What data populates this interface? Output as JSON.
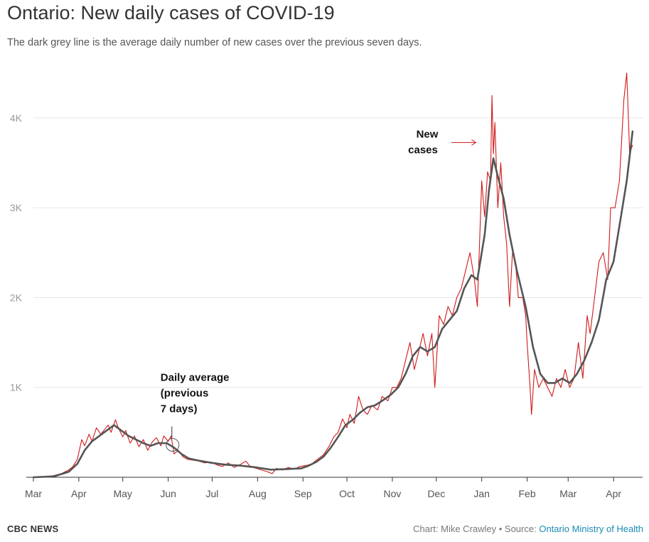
{
  "title": "Ontario: New daily cases of COVID-19",
  "subtitle": "The dark grey line is the average daily number of new cases over the previous seven days.",
  "footer": {
    "brand": "CBC NEWS",
    "credit": "Chart: Mike Crawley • Source: ",
    "source": "Ontario Ministry of Health"
  },
  "colors": {
    "new_cases": "#d11a1a",
    "average": "#555555",
    "grid": "#e6e6e6",
    "axis": "#333333"
  },
  "annotations": {
    "average": [
      "Daily average",
      "(previous",
      "7 days)"
    ],
    "new_cases": [
      "New",
      "cases"
    ]
  },
  "chart_data": {
    "type": "line",
    "title": "Ontario: New daily cases of COVID-19",
    "x_range": [
      "2020-03-01",
      "2021-04-15"
    ],
    "y_range": [
      0,
      4600
    ],
    "y_ticks": [
      1000,
      2000,
      3000,
      4000
    ],
    "y_tick_labels": [
      "1K",
      "2K",
      "3K",
      "4K"
    ],
    "x_ticks": [
      "2020-03-01",
      "2020-04-01",
      "2020-05-01",
      "2020-06-01",
      "2020-07-01",
      "2020-08-01",
      "2020-09-01",
      "2020-10-01",
      "2020-11-01",
      "2020-12-01",
      "2021-01-01",
      "2021-02-01",
      "2021-03-01",
      "2021-04-01"
    ],
    "x_tick_labels": [
      "Mar",
      "Apr",
      "May",
      "Jun",
      "Jul",
      "Aug",
      "Sep",
      "Oct",
      "Nov",
      "Dec",
      "Jan",
      "Feb",
      "Mar",
      "Apr"
    ],
    "grid": true,
    "series": [
      {
        "name": "New cases",
        "color": "#d11a1a",
        "points": [
          [
            "2020-03-01",
            0
          ],
          [
            "2020-03-10",
            5
          ],
          [
            "2020-03-15",
            20
          ],
          [
            "2020-03-20",
            40
          ],
          [
            "2020-03-25",
            80
          ],
          [
            "2020-03-28",
            120
          ],
          [
            "2020-03-31",
            200
          ],
          [
            "2020-04-03",
            420
          ],
          [
            "2020-04-05",
            350
          ],
          [
            "2020-04-08",
            480
          ],
          [
            "2020-04-10",
            400
          ],
          [
            "2020-04-13",
            550
          ],
          [
            "2020-04-16",
            480
          ],
          [
            "2020-04-18",
            520
          ],
          [
            "2020-04-21",
            580
          ],
          [
            "2020-04-23",
            500
          ],
          [
            "2020-04-26",
            640
          ],
          [
            "2020-04-28",
            550
          ],
          [
            "2020-05-01",
            450
          ],
          [
            "2020-05-03",
            520
          ],
          [
            "2020-05-06",
            380
          ],
          [
            "2020-05-09",
            460
          ],
          [
            "2020-05-12",
            340
          ],
          [
            "2020-05-15",
            420
          ],
          [
            "2020-05-18",
            300
          ],
          [
            "2020-05-21",
            390
          ],
          [
            "2020-05-24",
            440
          ],
          [
            "2020-05-27",
            350
          ],
          [
            "2020-05-29",
            460
          ],
          [
            "2020-06-01",
            400
          ],
          [
            "2020-06-03",
            460
          ],
          [
            "2020-06-05",
            260
          ],
          [
            "2020-06-08",
            300
          ],
          [
            "2020-06-11",
            230
          ],
          [
            "2020-06-14",
            200
          ],
          [
            "2020-06-18",
            190
          ],
          [
            "2020-06-22",
            180
          ],
          [
            "2020-06-26",
            160
          ],
          [
            "2020-06-30",
            170
          ],
          [
            "2020-07-04",
            140
          ],
          [
            "2020-07-08",
            120
          ],
          [
            "2020-07-12",
            160
          ],
          [
            "2020-07-16",
            110
          ],
          [
            "2020-07-20",
            140
          ],
          [
            "2020-07-24",
            180
          ],
          [
            "2020-07-27",
            120
          ],
          [
            "2020-07-31",
            100
          ],
          [
            "2020-08-04",
            80
          ],
          [
            "2020-08-08",
            60
          ],
          [
            "2020-08-11",
            40
          ],
          [
            "2020-08-14",
            100
          ],
          [
            "2020-08-18",
            80
          ],
          [
            "2020-08-22",
            110
          ],
          [
            "2020-08-26",
            90
          ],
          [
            "2020-08-30",
            120
          ],
          [
            "2020-09-03",
            130
          ],
          [
            "2020-09-07",
            150
          ],
          [
            "2020-09-11",
            200
          ],
          [
            "2020-09-15",
            250
          ],
          [
            "2020-09-19",
            350
          ],
          [
            "2020-09-22",
            450
          ],
          [
            "2020-09-25",
            500
          ],
          [
            "2020-09-28",
            650
          ],
          [
            "2020-10-01",
            550
          ],
          [
            "2020-10-03",
            700
          ],
          [
            "2020-10-06",
            600
          ],
          [
            "2020-10-09",
            900
          ],
          [
            "2020-10-12",
            750
          ],
          [
            "2020-10-15",
            700
          ],
          [
            "2020-10-18",
            800
          ],
          [
            "2020-10-22",
            750
          ],
          [
            "2020-10-25",
            900
          ],
          [
            "2020-10-29",
            850
          ],
          [
            "2020-11-01",
            1000
          ],
          [
            "2020-11-04",
            1000
          ],
          [
            "2020-11-07",
            1100
          ],
          [
            "2020-11-10",
            1300
          ],
          [
            "2020-11-13",
            1500
          ],
          [
            "2020-11-16",
            1200
          ],
          [
            "2020-11-19",
            1400
          ],
          [
            "2020-11-22",
            1600
          ],
          [
            "2020-11-25",
            1350
          ],
          [
            "2020-11-28",
            1600
          ],
          [
            "2020-11-30",
            1000
          ],
          [
            "2020-12-03",
            1800
          ],
          [
            "2020-12-06",
            1700
          ],
          [
            "2020-12-09",
            1900
          ],
          [
            "2020-12-12",
            1800
          ],
          [
            "2020-12-15",
            2000
          ],
          [
            "2020-12-18",
            2100
          ],
          [
            "2020-12-21",
            2300
          ],
          [
            "2020-12-24",
            2500
          ],
          [
            "2020-12-27",
            2200
          ],
          [
            "2020-12-29",
            1900
          ],
          [
            "2021-01-01",
            3300
          ],
          [
            "2021-01-03",
            2900
          ],
          [
            "2021-01-05",
            3400
          ],
          [
            "2021-01-07",
            3300
          ],
          [
            "2021-01-08",
            4250
          ],
          [
            "2021-01-09",
            3600
          ],
          [
            "2021-01-10",
            3950
          ],
          [
            "2021-01-12",
            3000
          ],
          [
            "2021-01-14",
            3500
          ],
          [
            "2021-01-16",
            2900
          ],
          [
            "2021-01-18",
            2600
          ],
          [
            "2021-01-20",
            1900
          ],
          [
            "2021-01-22",
            2500
          ],
          [
            "2021-01-24",
            2400
          ],
          [
            "2021-01-26",
            2000
          ],
          [
            "2021-01-29",
            2000
          ],
          [
            "2021-01-31",
            1800
          ],
          [
            "2021-02-01",
            1500
          ],
          [
            "2021-02-03",
            1000
          ],
          [
            "2021-02-04",
            700
          ],
          [
            "2021-02-06",
            1200
          ],
          [
            "2021-02-09",
            1000
          ],
          [
            "2021-02-12",
            1100
          ],
          [
            "2021-02-15",
            1000
          ],
          [
            "2021-02-18",
            900
          ],
          [
            "2021-02-21",
            1100
          ],
          [
            "2021-02-24",
            1000
          ],
          [
            "2021-02-27",
            1200
          ],
          [
            "2021-03-02",
            1000
          ],
          [
            "2021-03-05",
            1100
          ],
          [
            "2021-03-08",
            1500
          ],
          [
            "2021-03-11",
            1100
          ],
          [
            "2021-03-14",
            1800
          ],
          [
            "2021-03-16",
            1600
          ],
          [
            "2021-03-19",
            2000
          ],
          [
            "2021-03-22",
            2400
          ],
          [
            "2021-03-25",
            2500
          ],
          [
            "2021-03-28",
            2200
          ],
          [
            "2021-03-30",
            3000
          ],
          [
            "2021-04-02",
            3000
          ],
          [
            "2021-04-05",
            3300
          ],
          [
            "2021-04-08",
            4200
          ],
          [
            "2021-04-10",
            4500
          ],
          [
            "2021-04-12",
            3600
          ],
          [
            "2021-04-14",
            3700
          ]
        ]
      },
      {
        "name": "Daily average (previous 7 days)",
        "color": "#555555",
        "points": [
          [
            "2020-03-01",
            0
          ],
          [
            "2020-03-15",
            10
          ],
          [
            "2020-03-25",
            60
          ],
          [
            "2020-03-31",
            150
          ],
          [
            "2020-04-05",
            300
          ],
          [
            "2020-04-10",
            400
          ],
          [
            "2020-04-15",
            460
          ],
          [
            "2020-04-20",
            520
          ],
          [
            "2020-04-25",
            580
          ],
          [
            "2020-04-30",
            520
          ],
          [
            "2020-05-05",
            460
          ],
          [
            "2020-05-10",
            420
          ],
          [
            "2020-05-15",
            380
          ],
          [
            "2020-05-20",
            350
          ],
          [
            "2020-05-25",
            380
          ],
          [
            "2020-05-31",
            380
          ],
          [
            "2020-06-05",
            330
          ],
          [
            "2020-06-10",
            260
          ],
          [
            "2020-06-15",
            210
          ],
          [
            "2020-06-22",
            185
          ],
          [
            "2020-07-01",
            160
          ],
          [
            "2020-07-10",
            140
          ],
          [
            "2020-07-20",
            130
          ],
          [
            "2020-07-31",
            110
          ],
          [
            "2020-08-10",
            85
          ],
          [
            "2020-08-20",
            90
          ],
          [
            "2020-08-31",
            100
          ],
          [
            "2020-09-05",
            130
          ],
          [
            "2020-09-10",
            170
          ],
          [
            "2020-09-15",
            230
          ],
          [
            "2020-09-20",
            330
          ],
          [
            "2020-09-25",
            450
          ],
          [
            "2020-09-30",
            580
          ],
          [
            "2020-10-05",
            640
          ],
          [
            "2020-10-10",
            720
          ],
          [
            "2020-10-15",
            780
          ],
          [
            "2020-10-20",
            800
          ],
          [
            "2020-10-25",
            850
          ],
          [
            "2020-10-31",
            920
          ],
          [
            "2020-11-05",
            1000
          ],
          [
            "2020-11-10",
            1150
          ],
          [
            "2020-11-15",
            1350
          ],
          [
            "2020-11-20",
            1450
          ],
          [
            "2020-11-25",
            1400
          ],
          [
            "2020-11-30",
            1450
          ],
          [
            "2020-12-05",
            1650
          ],
          [
            "2020-12-10",
            1750
          ],
          [
            "2020-12-15",
            1850
          ],
          [
            "2020-12-20",
            2100
          ],
          [
            "2020-12-25",
            2250
          ],
          [
            "2020-12-29",
            2200
          ],
          [
            "2021-01-03",
            2700
          ],
          [
            "2021-01-06",
            3200
          ],
          [
            "2021-01-09",
            3550
          ],
          [
            "2021-01-12",
            3350
          ],
          [
            "2021-01-16",
            3100
          ],
          [
            "2021-01-20",
            2700
          ],
          [
            "2021-01-25",
            2300
          ],
          [
            "2021-01-31",
            1900
          ],
          [
            "2021-02-05",
            1450
          ],
          [
            "2021-02-10",
            1150
          ],
          [
            "2021-02-15",
            1050
          ],
          [
            "2021-02-20",
            1050
          ],
          [
            "2021-02-25",
            1100
          ],
          [
            "2021-03-02",
            1050
          ],
          [
            "2021-03-07",
            1150
          ],
          [
            "2021-03-12",
            1300
          ],
          [
            "2021-03-17",
            1500
          ],
          [
            "2021-03-22",
            1750
          ],
          [
            "2021-03-27",
            2200
          ],
          [
            "2021-04-01",
            2400
          ],
          [
            "2021-04-06",
            2900
          ],
          [
            "2021-04-10",
            3300
          ],
          [
            "2021-04-14",
            3850
          ]
        ]
      }
    ]
  }
}
